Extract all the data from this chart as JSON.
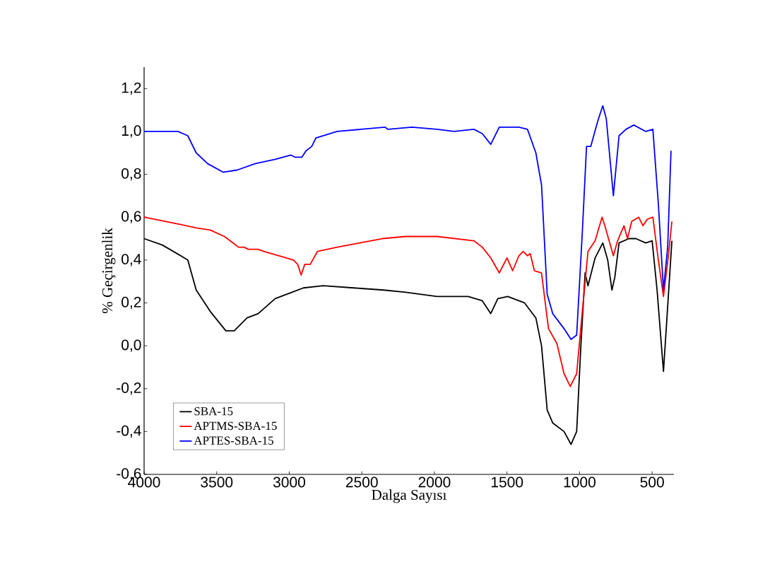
{
  "chart_data": {
    "type": "line",
    "xlabel": "Dalga Sayısı",
    "ylabel": "% Geçirgenlik",
    "xlim": [
      4000,
      350
    ],
    "ylim": [
      -0.6,
      1.3
    ],
    "xticks": [
      4000,
      3500,
      3000,
      2500,
      2000,
      1500,
      1000,
      500
    ],
    "yticks": [
      {
        "value": -0.6,
        "label": "-0,6"
      },
      {
        "value": -0.4,
        "label": "-0,4"
      },
      {
        "value": -0.2,
        "label": "-0,2"
      },
      {
        "value": 0,
        "label": "0,0"
      },
      {
        "value": 0.2,
        "label": "0,2"
      },
      {
        "value": 0.4,
        "label": "0,4"
      },
      {
        "value": 0.6,
        "label": "0,6"
      },
      {
        "value": 0.8,
        "label": "0,8"
      },
      {
        "value": 1.0,
        "label": "1,0"
      },
      {
        "value": 1.2,
        "label": "1,2"
      }
    ],
    "legend": "bottom left",
    "grid": false,
    "marker": "none",
    "line_style": "solid",
    "series": [
      {
        "name": "SBA-15",
        "color": "#000000",
        "x": [
          4000,
          3874,
          3748,
          3699,
          3641,
          3544,
          3437,
          3379,
          3291,
          3214,
          3097,
          2981,
          2903,
          2767,
          2554,
          2350,
          2199,
          1981,
          1845,
          1767,
          1670,
          1612,
          1563,
          1495,
          1379,
          1301,
          1262,
          1223,
          1185,
          1107,
          1059,
          1020,
          991,
          962,
          942,
          893,
          840,
          806,
          777,
          757,
          728,
          660,
          612,
          544,
          500,
          466,
          422,
          398,
          364
        ],
        "values": [
          0.5,
          0.47,
          0.42,
          0.4,
          0.26,
          0.16,
          0.07,
          0.07,
          0.13,
          0.15,
          0.22,
          0.25,
          0.27,
          0.28,
          0.27,
          0.26,
          0.25,
          0.23,
          0.23,
          0.23,
          0.21,
          0.15,
          0.22,
          0.23,
          0.2,
          0.13,
          0.0,
          -0.3,
          -0.36,
          -0.4,
          -0.46,
          -0.4,
          0.0,
          0.34,
          0.28,
          0.41,
          0.48,
          0.4,
          0.26,
          0.32,
          0.48,
          0.5,
          0.5,
          0.48,
          0.49,
          0.26,
          -0.12,
          0.13,
          0.49
        ]
      },
      {
        "name": "APTMS-SBA-15",
        "color": "#ff0000",
        "x": [
          4000,
          3777,
          3641,
          3544,
          3447,
          3388,
          3350,
          3311,
          3282,
          3214,
          3175,
          3019,
          2971,
          2942,
          2918,
          2893,
          2855,
          2806,
          2670,
          2515,
          2359,
          2199,
          1981,
          1728,
          1670,
          1612,
          1553,
          1500,
          1461,
          1418,
          1389,
          1359,
          1340,
          1311,
          1262,
          1214,
          1156,
          1107,
          1064,
          1020,
          981,
          942,
          893,
          845,
          826,
          767,
          738,
          694,
          670,
          641,
          593,
          563,
          534,
          495,
          457,
          422,
          388,
          364
        ],
        "values": [
          0.6,
          0.57,
          0.55,
          0.54,
          0.51,
          0.48,
          0.46,
          0.46,
          0.45,
          0.45,
          0.44,
          0.41,
          0.4,
          0.38,
          0.33,
          0.38,
          0.38,
          0.44,
          0.46,
          0.48,
          0.5,
          0.51,
          0.51,
          0.49,
          0.46,
          0.41,
          0.34,
          0.41,
          0.35,
          0.42,
          0.44,
          0.42,
          0.43,
          0.35,
          0.34,
          0.08,
          0.01,
          -0.13,
          -0.19,
          -0.13,
          0.16,
          0.44,
          0.49,
          0.6,
          0.56,
          0.42,
          0.49,
          0.56,
          0.5,
          0.58,
          0.6,
          0.56,
          0.59,
          0.6,
          0.4,
          0.23,
          0.42,
          0.58
        ]
      },
      {
        "name": "APTES-SBA-15",
        "color": "#0000ff",
        "x": [
          4000,
          3767,
          3699,
          3641,
          3563,
          3456,
          3359,
          3233,
          3097,
          2990,
          2961,
          2913,
          2884,
          2845,
          2816,
          2670,
          2340,
          2320,
          2155,
          1981,
          1864,
          1728,
          1670,
          1612,
          1553,
          1418,
          1359,
          1301,
          1262,
          1223,
          1185,
          1107,
          1059,
          1020,
          981,
          952,
          923,
          874,
          840,
          816,
          767,
          728,
          680,
          626,
          544,
          495,
          457,
          422,
          393,
          370
        ],
        "values": [
          1.0,
          1.0,
          0.98,
          0.9,
          0.85,
          0.81,
          0.82,
          0.85,
          0.87,
          0.89,
          0.88,
          0.88,
          0.91,
          0.93,
          0.97,
          1.0,
          1.02,
          1.01,
          1.02,
          1.01,
          1.0,
          1.01,
          0.99,
          0.94,
          1.02,
          1.02,
          1.01,
          0.9,
          0.75,
          0.24,
          0.15,
          0.08,
          0.03,
          0.05,
          0.53,
          0.93,
          0.93,
          1.05,
          1.12,
          1.06,
          0.7,
          0.98,
          1.01,
          1.03,
          1.0,
          1.01,
          0.66,
          0.26,
          0.46,
          0.91
        ]
      }
    ]
  }
}
